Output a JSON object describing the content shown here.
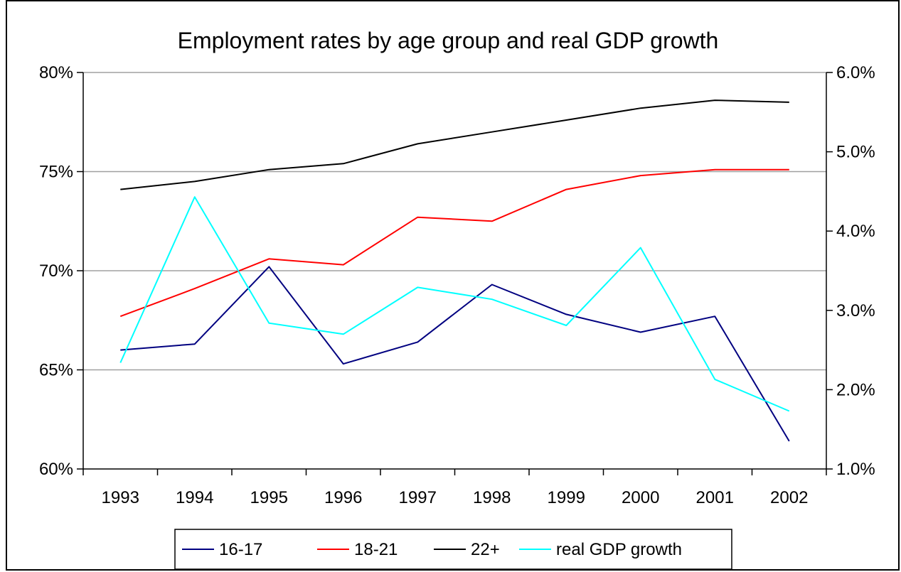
{
  "chart_data": {
    "type": "line",
    "title": "Employment rates by age group and real GDP growth",
    "xlabel": "",
    "ylabel": "",
    "y2label": "",
    "categories": [
      "1993",
      "1994",
      "1995",
      "1996",
      "1997",
      "1998",
      "1999",
      "2000",
      "2001",
      "2002"
    ],
    "y_axis": {
      "ticks": [
        60,
        65,
        70,
        75,
        80
      ],
      "tick_labels": [
        "60%",
        "65%",
        "70%",
        "75%",
        "80%"
      ],
      "range": [
        60,
        80
      ]
    },
    "y2_axis": {
      "ticks": [
        1,
        2,
        3,
        4,
        5,
        6
      ],
      "tick_labels": [
        "1.0%",
        "2.0%",
        "3.0%",
        "4.0%",
        "5.0%",
        "6.0%"
      ],
      "range": [
        1,
        6
      ]
    },
    "grid": true,
    "legend_placement": "bottom",
    "series": [
      {
        "name": "16-17",
        "axis": "left",
        "color": "#000080",
        "values": [
          66.0,
          66.3,
          70.2,
          65.3,
          66.4,
          69.3,
          67.8,
          66.9,
          67.7,
          61.4
        ]
      },
      {
        "name": "18-21",
        "axis": "left",
        "color": "#ff0000",
        "values": [
          67.7,
          69.1,
          70.6,
          70.3,
          72.7,
          72.5,
          74.1,
          74.8,
          75.1,
          75.1
        ]
      },
      {
        "name": "22+",
        "axis": "left",
        "color": "#000000",
        "values": [
          74.1,
          74.5,
          75.1,
          75.4,
          76.4,
          77.0,
          77.6,
          78.2,
          78.6,
          78.5
        ]
      },
      {
        "name": "real GDP growth",
        "axis": "right",
        "color": "#00ffff",
        "values": [
          2.34,
          4.43,
          2.84,
          2.7,
          3.29,
          3.14,
          2.81,
          3.79,
          2.13,
          1.73
        ]
      }
    ]
  }
}
